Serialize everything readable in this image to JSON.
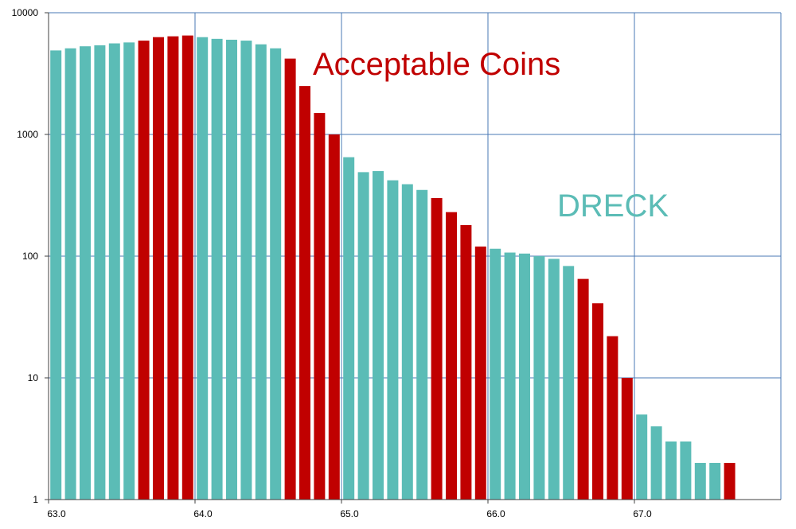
{
  "chart_data": {
    "type": "bar",
    "yscale": "log",
    "ylim": [
      1,
      10000
    ],
    "xlim": [
      63.0,
      68.0
    ],
    "grid": true,
    "ytick_labels": [
      "1",
      "10",
      "100",
      "1000",
      "10000"
    ],
    "xtick_labels": [
      "63.0",
      "64.0",
      "65.0",
      "66.0",
      "67.0"
    ],
    "annotations": [
      {
        "text": "Acceptable  Coins",
        "color": "#c00000"
      },
      {
        "text": "DRECK",
        "color": "#5bbcb6"
      }
    ],
    "colors": {
      "acceptable": "#c00000",
      "dreck": "#5bbcb6",
      "grid": "#4a78b5"
    },
    "x": [
      63.0,
      63.1,
      63.2,
      63.3,
      63.4,
      63.5,
      63.6,
      63.7,
      63.8,
      63.9,
      64.0,
      64.1,
      64.2,
      64.3,
      64.4,
      64.5,
      64.6,
      64.7,
      64.8,
      64.9,
      65.0,
      65.1,
      65.2,
      65.3,
      65.4,
      65.5,
      65.6,
      65.7,
      65.8,
      65.9,
      66.0,
      66.1,
      66.2,
      66.3,
      66.4,
      66.5,
      66.6,
      66.7,
      66.8,
      66.9,
      67.0,
      67.1,
      67.2,
      67.3,
      67.4,
      67.5,
      67.6
    ],
    "values": [
      4900,
      5100,
      5300,
      5400,
      5600,
      5700,
      5900,
      6300,
      6400,
      6500,
      6300,
      6100,
      6000,
      5900,
      5500,
      5100,
      4200,
      2500,
      1500,
      1000,
      650,
      490,
      500,
      420,
      390,
      350,
      300,
      230,
      180,
      120,
      115,
      107,
      105,
      100,
      95,
      83,
      65,
      41,
      22,
      10,
      5,
      4,
      3,
      3,
      2,
      2,
      2
    ],
    "categories": [
      "dreck",
      "dreck",
      "dreck",
      "dreck",
      "dreck",
      "dreck",
      "acceptable",
      "acceptable",
      "acceptable",
      "acceptable",
      "dreck",
      "dreck",
      "dreck",
      "dreck",
      "dreck",
      "dreck",
      "acceptable",
      "acceptable",
      "acceptable",
      "acceptable",
      "dreck",
      "dreck",
      "dreck",
      "dreck",
      "dreck",
      "dreck",
      "acceptable",
      "acceptable",
      "acceptable",
      "acceptable",
      "dreck",
      "dreck",
      "dreck",
      "dreck",
      "dreck",
      "dreck",
      "acceptable",
      "acceptable",
      "acceptable",
      "acceptable",
      "dreck",
      "dreck",
      "dreck",
      "dreck",
      "dreck",
      "dreck",
      "acceptable"
    ]
  }
}
